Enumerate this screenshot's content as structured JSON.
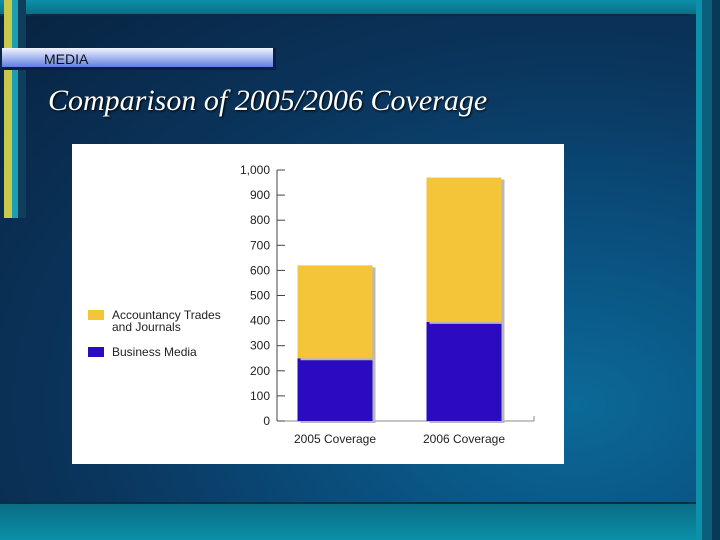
{
  "slide": {
    "section_label": "MEDIA",
    "title": "Comparison of 2005/2006 Coverage"
  },
  "colors": {
    "accountancy": "#f4c538",
    "business": "#2b0ac0"
  },
  "chart_data": {
    "type": "bar",
    "stacked": true,
    "categories": [
      "2005 Coverage",
      "2006 Coverage"
    ],
    "series": [
      {
        "name": "Business Media",
        "values": [
          250,
          395
        ]
      },
      {
        "name": "Accountancy Trades and Journals",
        "values": [
          370,
          575
        ]
      }
    ],
    "ylim": [
      0,
      1000
    ],
    "yticks": [
      "0",
      "100",
      "200",
      "300",
      "400",
      "500",
      "600",
      "700",
      "800",
      "900",
      "1,000"
    ],
    "legend": [
      {
        "label": "Accountancy Trades and Journals",
        "lines": [
          "Accountancy Trades",
          "and Journals"
        ],
        "color": "#f4c538"
      },
      {
        "label": "Business Media",
        "lines": [
          "Business Media"
        ],
        "color": "#2b0ac0"
      }
    ],
    "legend_position": "left",
    "grid": false
  }
}
